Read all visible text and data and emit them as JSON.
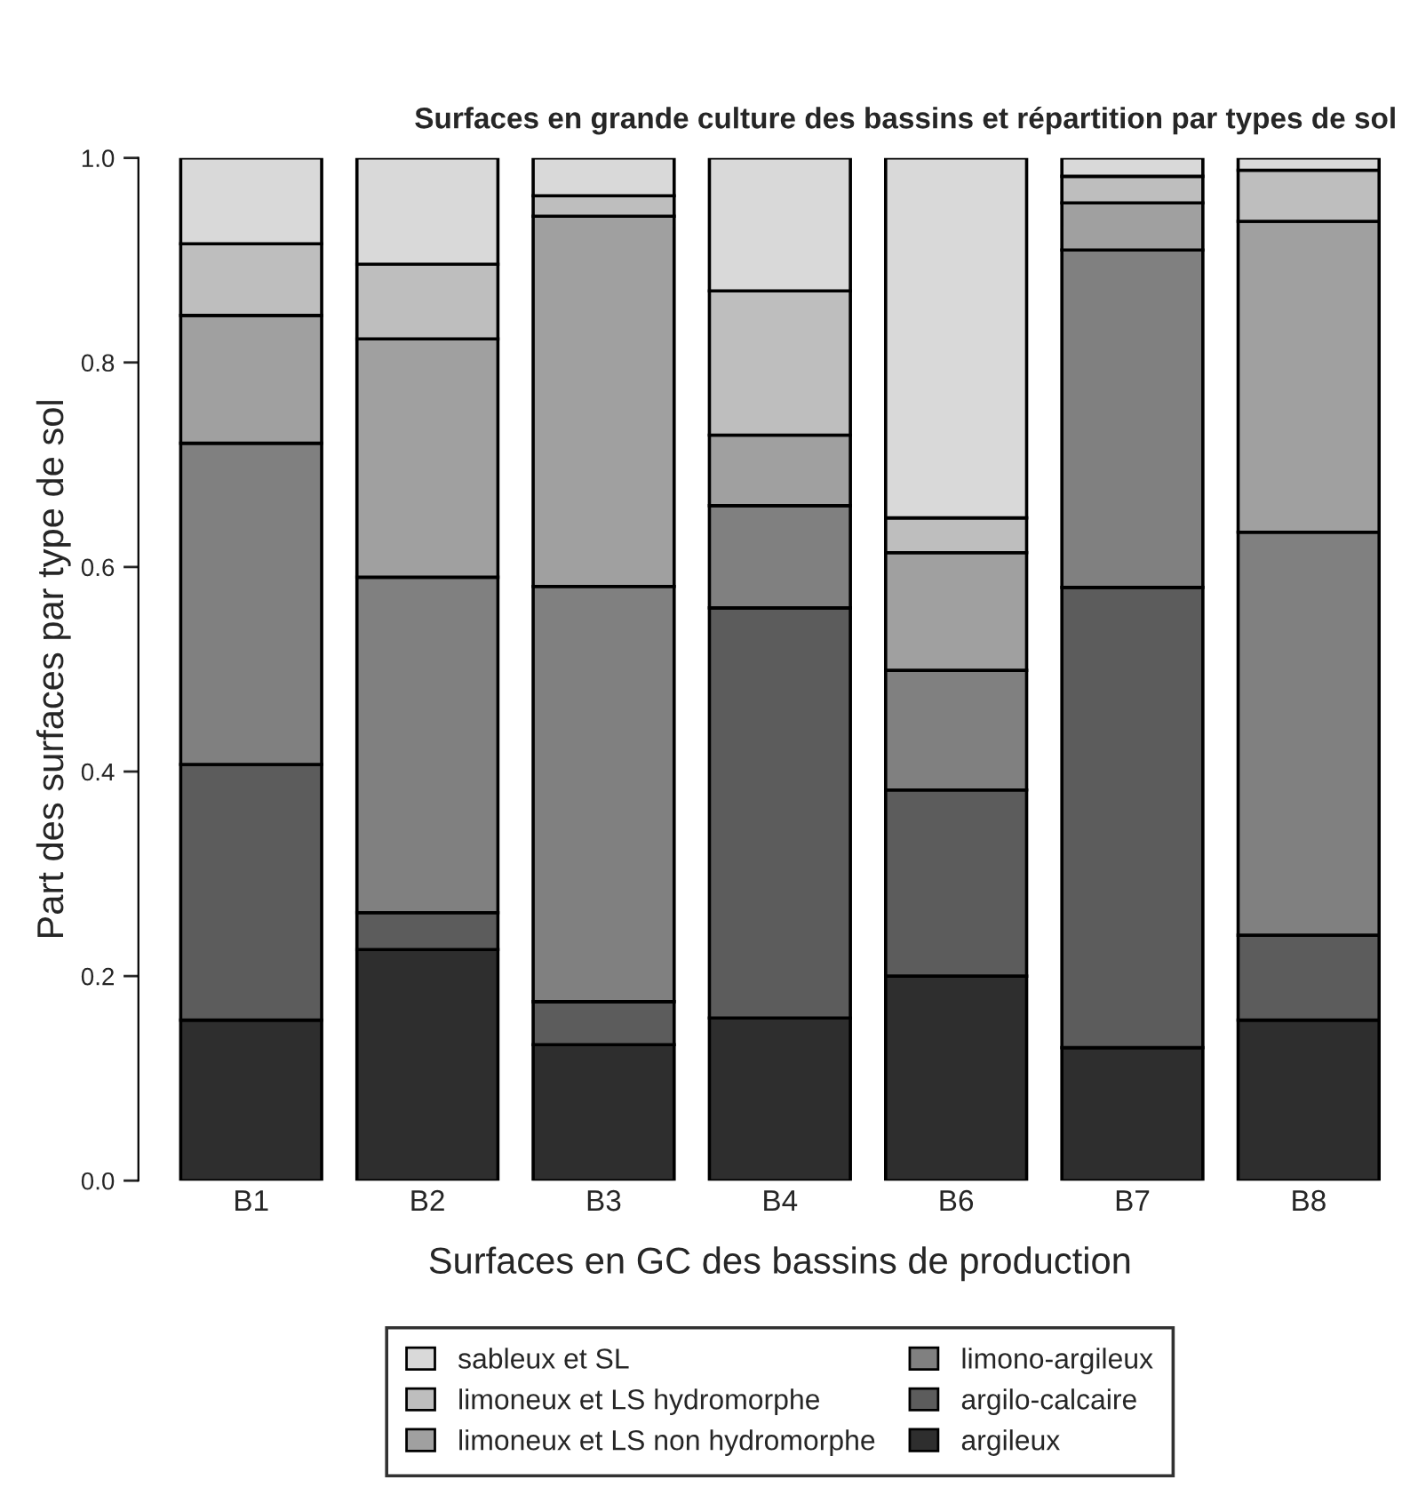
{
  "chart_data": {
    "type": "bar",
    "stacked": true,
    "title": "Surfaces en grande culture des bassins et répartition par types de sol",
    "xlabel": "Surfaces en GC des bassins de production",
    "ylabel": "Part des surfaces par type de sol",
    "categories": [
      "B1",
      "B2",
      "B3",
      "B4",
      "B6",
      "B7",
      "B8"
    ],
    "series": [
      {
        "name": "argileux",
        "color": "#2e2e2e",
        "values": [
          0.157,
          0.226,
          0.133,
          0.159,
          0.2,
          0.13,
          0.157
        ]
      },
      {
        "name": "argilo-calcaire",
        "color": "#5c5c5c",
        "values": [
          0.25,
          0.036,
          0.042,
          0.401,
          0.182,
          0.45,
          0.083
        ]
      },
      {
        "name": "limono-argileux",
        "color": "#808080",
        "values": [
          0.314,
          0.328,
          0.406,
          0.1,
          0.117,
          0.33,
          0.394
        ]
      },
      {
        "name": "limoneux et LS non hydromorphe",
        "color": "#a0a0a0",
        "values": [
          0.125,
          0.233,
          0.362,
          0.069,
          0.115,
          0.046,
          0.304
        ]
      },
      {
        "name": "limoneux et LS hydromorphe",
        "color": "#bebebe",
        "values": [
          0.07,
          0.073,
          0.02,
          0.141,
          0.034,
          0.026,
          0.05
        ]
      },
      {
        "name": "sableux et SL",
        "color": "#d9d9d9",
        "values": [
          0.084,
          0.104,
          0.037,
          0.13,
          0.352,
          0.018,
          0.012
        ]
      }
    ],
    "ylim": [
      0,
      1
    ],
    "yticks": [
      {
        "value": 0,
        "label": "0.0"
      },
      {
        "value": 0.2,
        "label": "0.2"
      },
      {
        "value": 0.4,
        "label": "0.4"
      },
      {
        "value": 0.6,
        "label": "0.6"
      },
      {
        "value": 0.8,
        "label": "0.8"
      },
      {
        "value": 1,
        "label": "1.0"
      }
    ],
    "grid": false,
    "legend": "bottom"
  }
}
